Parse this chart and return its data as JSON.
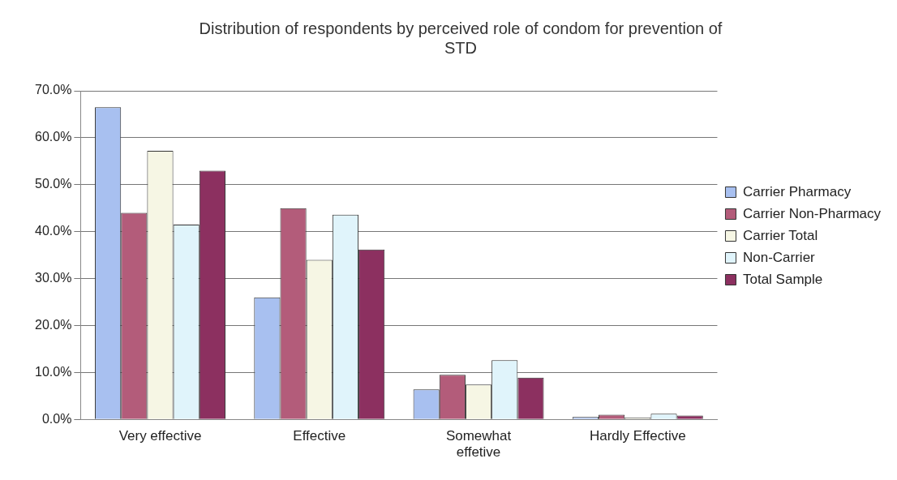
{
  "chart_data": {
    "type": "bar",
    "title": "Distribution of respondents by perceived role of condom for prevention of STD",
    "categories": [
      "Very effective",
      "Effective",
      "Somewhat effetive",
      "Hardly Effective"
    ],
    "series": [
      {
        "name": "Carrier Pharmacy",
        "color": "#a8c0f0",
        "values": [
          66.5,
          26,
          6.4,
          0.5
        ]
      },
      {
        "name": "Carrier Non-Pharmacy",
        "color": "#b35c7a",
        "values": [
          44,
          45,
          9.5,
          1
        ]
      },
      {
        "name": "Carrier Total",
        "color": "#f6f6e4",
        "values": [
          57.2,
          34,
          7.4,
          0.4
        ]
      },
      {
        "name": "Non-Carrier",
        "color": "#e0f4fb",
        "values": [
          41.5,
          43.6,
          12.6,
          1.2
        ]
      },
      {
        "name": "Total Sample",
        "color": "#8c3060",
        "values": [
          53,
          36.2,
          8.9,
          0.8
        ]
      }
    ],
    "ylim": [
      0,
      70
    ],
    "yticks": [
      {
        "value": 0,
        "label": "0.0%"
      },
      {
        "value": 10,
        "label": "10.0%"
      },
      {
        "value": 20,
        "label": "20.0%"
      },
      {
        "value": 30,
        "label": "30.0%"
      },
      {
        "value": 40,
        "label": "40.0%"
      },
      {
        "value": 50,
        "label": "50.0%"
      },
      {
        "value": 60,
        "label": "60.0%"
      },
      {
        "value": 70,
        "label": "70.0%"
      }
    ],
    "grid": "y",
    "legend": "right"
  }
}
